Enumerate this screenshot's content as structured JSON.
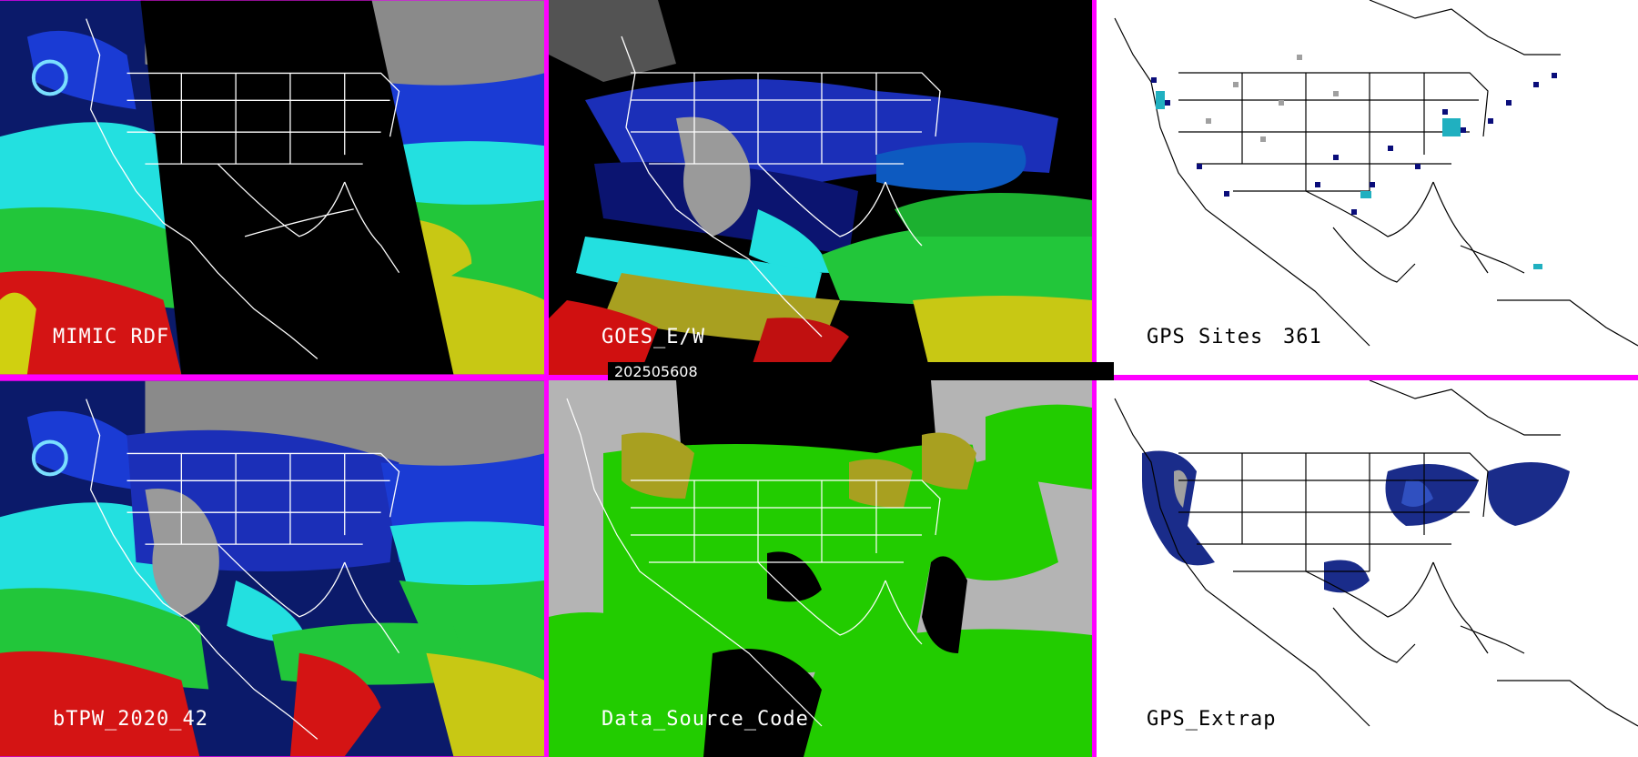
{
  "panels": [
    {
      "id": "mimic",
      "label": "MIMIC RDF"
    },
    {
      "id": "goes",
      "label": "GOES_E/W"
    },
    {
      "id": "gps-sites",
      "label": "GPS Sites",
      "count": "361"
    },
    {
      "id": "btpw",
      "label": "bTPW_2020_42"
    },
    {
      "id": "source-code",
      "label": "Data_Source_Code"
    },
    {
      "id": "gps-extrap",
      "label": "GPS_Extrap"
    }
  ],
  "timestamp": "202505608",
  "colors": {
    "divider": "#ff00ff",
    "dry": "#0a0d7a",
    "moist": "#20e6e6",
    "wetter": "#22cc22",
    "humid": "#c8c814",
    "wettest": "#d01010",
    "no_data": "#000000",
    "source_gray": "#b4b4b4",
    "source_green": "#22cc00",
    "source_olive": "#a8a020"
  }
}
